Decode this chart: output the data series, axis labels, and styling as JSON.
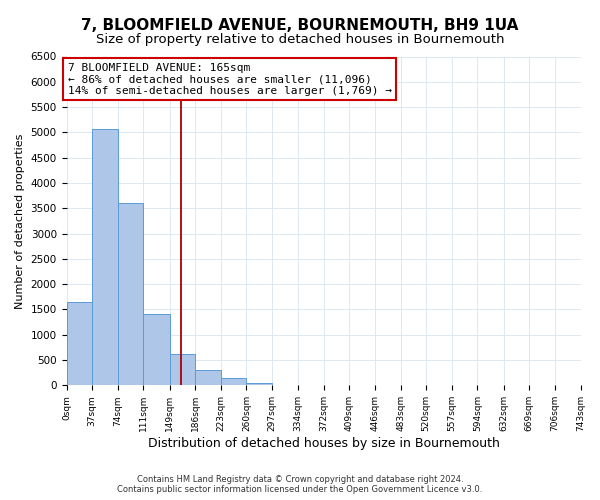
{
  "title": "7, BLOOMFIELD AVENUE, BOURNEMOUTH, BH9 1UA",
  "subtitle": "Size of property relative to detached houses in Bournemouth",
  "xlabel": "Distribution of detached houses by size in Bournemouth",
  "ylabel": "Number of detached properties",
  "bar_edges": [
    0,
    37,
    74,
    111,
    149,
    186,
    223,
    260,
    297,
    334,
    372,
    409,
    446,
    483,
    520,
    557,
    594,
    632,
    669,
    706,
    743
  ],
  "bar_heights": [
    1650,
    5075,
    3600,
    1420,
    615,
    300,
    145,
    55,
    0,
    0,
    0,
    0,
    0,
    0,
    0,
    0,
    0,
    0,
    0,
    0
  ],
  "bar_color": "#aec6e8",
  "bar_edge_color": "#5b9bd5",
  "property_size": 165,
  "vline_color": "#aa0000",
  "annotation_text": "7 BLOOMFIELD AVENUE: 165sqm\n← 86% of detached houses are smaller (11,096)\n14% of semi-detached houses are larger (1,769) →",
  "annotation_box_color": "#ffffff",
  "annotation_box_edge": "#cc0000",
  "ylim": [
    0,
    6500
  ],
  "yticks": [
    0,
    500,
    1000,
    1500,
    2000,
    2500,
    3000,
    3500,
    4000,
    4500,
    5000,
    5500,
    6000,
    6500
  ],
  "xtick_labels": [
    "0sqm",
    "37sqm",
    "74sqm",
    "111sqm",
    "149sqm",
    "186sqm",
    "223sqm",
    "260sqm",
    "297sqm",
    "334sqm",
    "372sqm",
    "409sqm",
    "446sqm",
    "483sqm",
    "520sqm",
    "557sqm",
    "594sqm",
    "632sqm",
    "669sqm",
    "706sqm",
    "743sqm"
  ],
  "footer_line1": "Contains HM Land Registry data © Crown copyright and database right 2024.",
  "footer_line2": "Contains public sector information licensed under the Open Government Licence v3.0.",
  "bg_color": "#ffffff",
  "grid_color": "#dce8f0",
  "title_fontsize": 11,
  "subtitle_fontsize": 9.5,
  "annotation_fontsize": 8.0,
  "ylabel_fontsize": 8,
  "xlabel_fontsize": 9,
  "ytick_fontsize": 7.5,
  "xtick_fontsize": 6.5
}
